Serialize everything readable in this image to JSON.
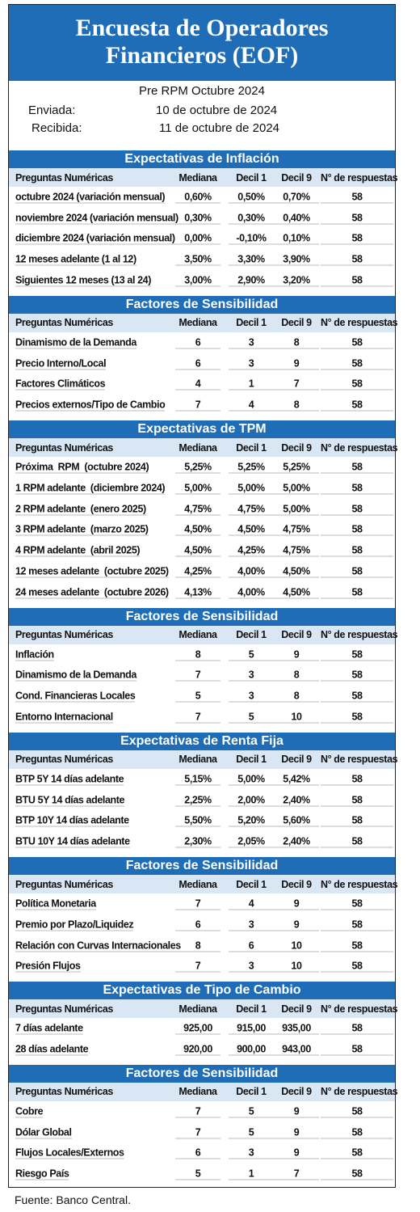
{
  "header": {
    "title_lines": [
      "Encuesta de Operadores",
      "Financieros (EOF)"
    ],
    "subtitle": "Pre RPM Octubre 2024",
    "sent_label": "Enviada:",
    "sent_date": "10 de octubre de 2024",
    "received_label": "Recibida:",
    "received_date": "11 de octubre de 2024"
  },
  "sections": [
    {
      "title": "Expectativas de Inflación",
      "columns": [
        "Preguntas Numéricas",
        "Mediana",
        "Decil 1",
        "Decil 9",
        "N° de respuestas"
      ],
      "rows": [
        [
          "octubre 2024 (variación mensual)",
          "0,60%",
          "0,50%",
          "0,70%",
          "58"
        ],
        [
          "noviembre 2024 (variación mensual)",
          "0,30%",
          "0,30%",
          "0,40%",
          "58"
        ],
        [
          "diciembre 2024 (variación mensual)",
          "0,00%",
          "-0,10%",
          "0,10%",
          "58"
        ],
        [
          "12 meses adelante (1 al 12)",
          "3,50%",
          "3,30%",
          "3,90%",
          "58"
        ],
        [
          "Siguientes 12 meses (13 al 24)",
          "3,00%",
          "2,90%",
          "3,20%",
          "58"
        ]
      ]
    },
    {
      "title": "Factores de Sensibilidad",
      "columns": [
        "Preguntas Numéricas",
        "Mediana",
        "Decil 1",
        "Decil 9",
        "N° de respuestas"
      ],
      "rows": [
        [
          "Dinamismo de la Demanda",
          "6",
          "3",
          "8",
          "58"
        ],
        [
          "Precio Interno/Local",
          "6",
          "3",
          "9",
          "58"
        ],
        [
          "Factores Climáticos",
          "4",
          "1",
          "7",
          "58"
        ],
        [
          "Precios externos/Tipo de Cambio",
          "7",
          "4",
          "8",
          "58"
        ]
      ]
    },
    {
      "title": "Expectativas de TPM",
      "columns": [
        "Preguntas Numéricas",
        "Mediana",
        "Decil 1",
        "Decil 9",
        "N° de respuestas"
      ],
      "rows": [
        [
          "Próxima  RPM  (octubre 2024)",
          "5,25%",
          "5,25%",
          "5,25%",
          "58"
        ],
        [
          "1 RPM adelante  (diciembre 2024)",
          "5,00%",
          "5,00%",
          "5,00%",
          "58"
        ],
        [
          "2 RPM adelante  (enero 2025)",
          "4,75%",
          "4,75%",
          "5,00%",
          "58"
        ],
        [
          "3 RPM adelante  (marzo 2025)",
          "4,50%",
          "4,50%",
          "4,75%",
          "58"
        ],
        [
          "4 RPM adelante  (abril 2025)",
          "4,50%",
          "4,25%",
          "4,75%",
          "58"
        ],
        [
          "12 meses adelante  (octubre 2025)",
          "4,25%",
          "4,00%",
          "4,50%",
          "58"
        ],
        [
          "24 meses adelante  (octubre 2026)",
          "4,13%",
          "4,00%",
          "4,50%",
          "58"
        ]
      ]
    },
    {
      "title": "Factores de Sensibilidad",
      "columns": [
        "Preguntas Numéricas",
        "Mediana",
        "Decil 1",
        "Decil 9",
        "N° de respuestas"
      ],
      "rows": [
        [
          "Inflación",
          "8",
          "5",
          "9",
          "58"
        ],
        [
          "Dinamismo de la Demanda",
          "7",
          "3",
          "8",
          "58"
        ],
        [
          "Cond. Financieras Locales",
          "5",
          "3",
          "8",
          "58"
        ],
        [
          "Entorno Internacional",
          "7",
          "5",
          "10",
          "58"
        ]
      ]
    },
    {
      "title": "Expectativas  de Renta Fija",
      "columns": [
        "Preguntas Numéricas",
        "Mediana",
        "Decil 1",
        "Decil 9",
        "N° de respuestas"
      ],
      "rows": [
        [
          "BTP 5Y 14 días adelante",
          "5,15%",
          "5,00%",
          "5,42%",
          "58"
        ],
        [
          "BTU 5Y 14 días adelante",
          "2,25%",
          "2,00%",
          "2,40%",
          "58"
        ],
        [
          "BTP 10Y 14 días adelante",
          "5,50%",
          "5,20%",
          "5,60%",
          "58"
        ],
        [
          "BTU 10Y 14 días adelante",
          "2,30%",
          "2,05%",
          "2,40%",
          "58"
        ]
      ]
    },
    {
      "title": "Factores de Sensibilidad",
      "columns": [
        "Preguntas Numéricas",
        "Mediana",
        "Decil 1",
        "Decil 9",
        "N° de respuestas"
      ],
      "rows": [
        [
          "Política Monetaria",
          "7",
          "4",
          "9",
          "58"
        ],
        [
          "Premio por Plazo/Liquidez",
          "6",
          "3",
          "9",
          "58"
        ],
        [
          "Relación con Curvas Internacionales",
          "8",
          "6",
          "10",
          "58"
        ],
        [
          "Presión Flujos",
          "7",
          "3",
          "10",
          "58"
        ]
      ]
    },
    {
      "title": "Expectativas  de Tipo de Cambio",
      "columns": [
        "Preguntas Numéricas",
        "Mediana",
        "Decil 1",
        "Decil 9",
        "N° de respuestas"
      ],
      "rows": [
        [
          "7 días adelante",
          "925,00",
          "915,00",
          "935,00",
          "58"
        ],
        [
          "28 días adelante",
          "920,00",
          "900,00",
          "943,00",
          "58"
        ]
      ]
    },
    {
      "title": "Factores de Sensibilidad",
      "columns": [
        "Preguntas Numéricas",
        "Mediana",
        "Decil 1",
        "Decil 9",
        "N° de respuestas"
      ],
      "rows": [
        [
          "Cobre",
          "7",
          "5",
          "9",
          "58"
        ],
        [
          "Dólar Global",
          "7",
          "5",
          "9",
          "58"
        ],
        [
          "Flujos Locales/Externos",
          "6",
          "3",
          "9",
          "58"
        ],
        [
          "Riesgo País",
          "5",
          "1",
          "7",
          "58"
        ]
      ]
    }
  ],
  "footer": {
    "source": "Fuente: Banco Central."
  }
}
